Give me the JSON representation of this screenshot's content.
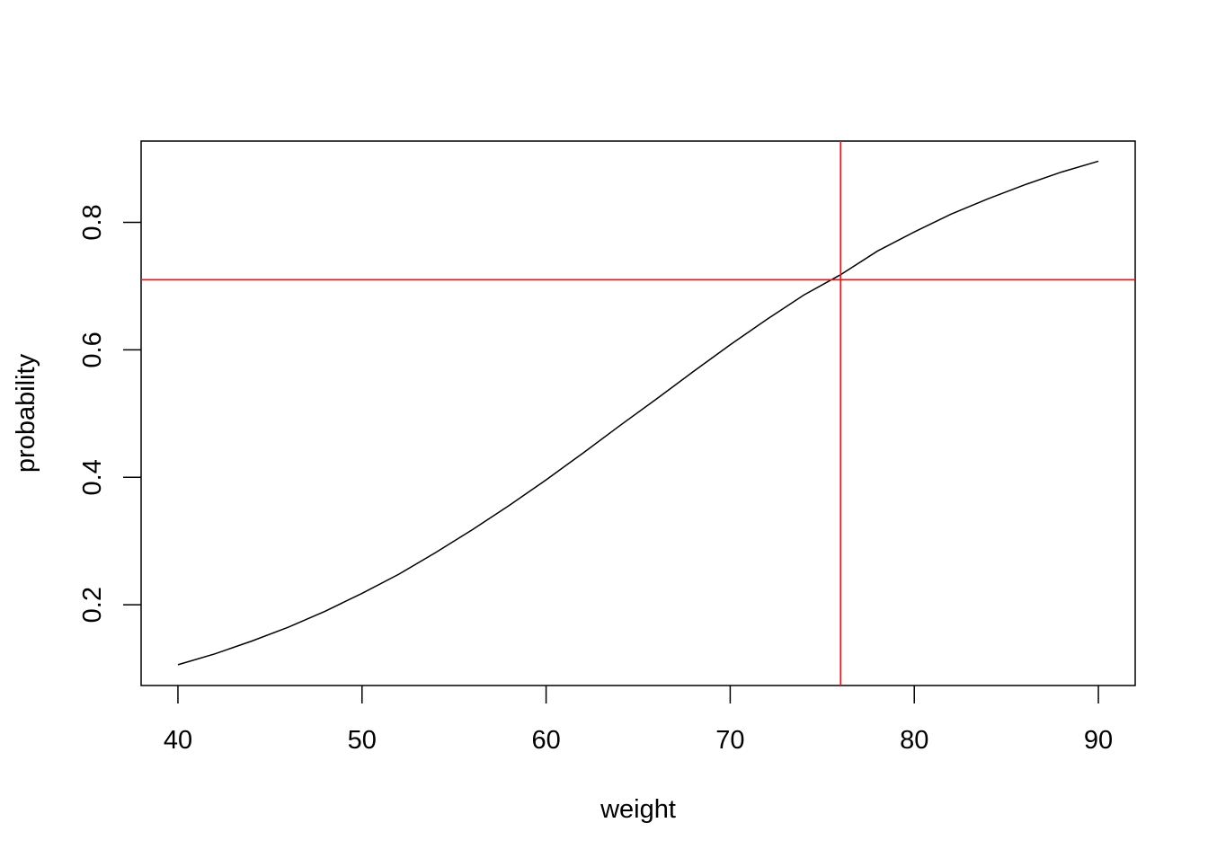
{
  "chart_data": {
    "type": "line",
    "x_label": "weight",
    "y_label": "probability",
    "x": [
      40,
      42,
      44,
      46,
      48,
      50,
      52,
      54,
      56,
      58,
      60,
      62,
      64,
      66,
      68,
      70,
      72,
      74,
      76,
      78,
      80,
      82,
      84,
      86,
      88,
      90
    ],
    "series": [
      {
        "color": "#000000",
        "values": [
          0.106,
          0.123,
          0.143,
          0.165,
          0.19,
          0.218,
          0.248,
          0.282,
          0.318,
          0.356,
          0.396,
          0.438,
          0.481,
          0.523,
          0.566,
          0.608,
          0.648,
          0.686,
          0.718,
          0.755,
          0.785,
          0.813,
          0.837,
          0.859,
          0.879,
          0.896
        ]
      }
    ],
    "vline": 76,
    "hline": 0.71,
    "ref_color": "#e8191c",
    "xlim": [
      38,
      92
    ],
    "ylim": [
      0.0734,
      0.9276
    ],
    "xticks": [
      40,
      50,
      60,
      70,
      80,
      90
    ],
    "yticks": [
      0.2,
      0.4,
      0.6,
      0.8
    ]
  }
}
